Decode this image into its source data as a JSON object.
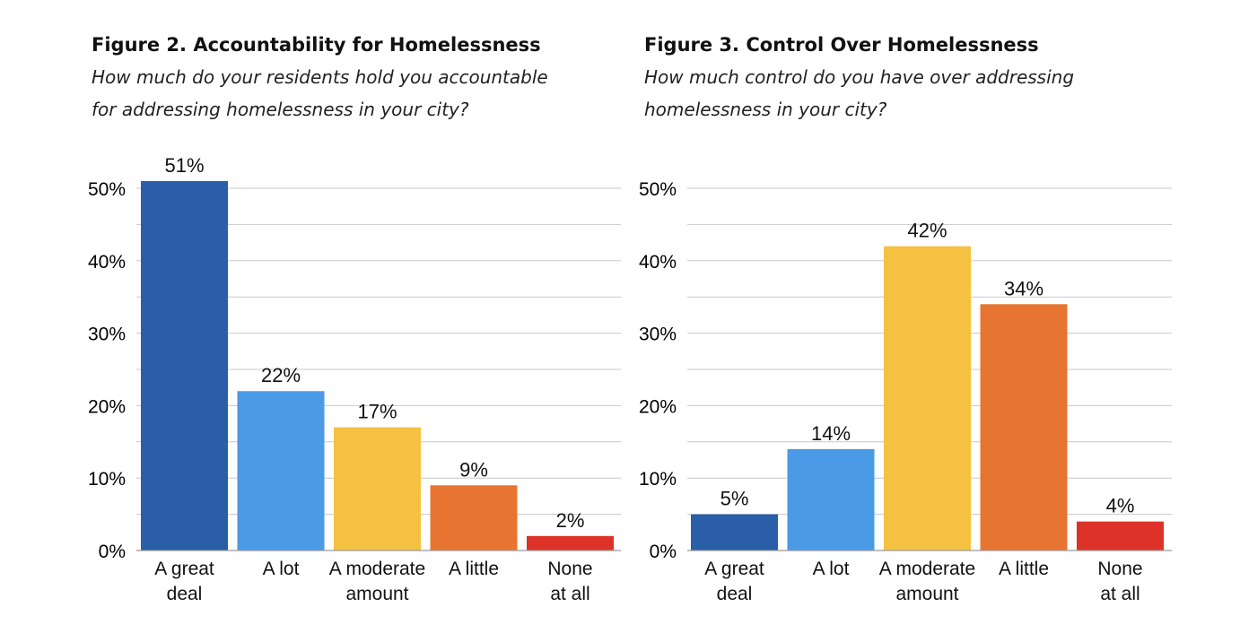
{
  "colors": {
    "dark_blue": "#2a5ea8",
    "light_blue": "#4a9ae6",
    "yellow": "#f4c142",
    "orange": "#e87431",
    "red": "#dc3228",
    "grid": "#c8c8c8"
  },
  "chart_data": [
    {
      "type": "bar",
      "title": "Figure 2. Accountability for Homelessness",
      "subtitle_lines": [
        "How much do your residents hold you accountable",
        "for addressing homelessness in your city?"
      ],
      "categories": [
        [
          "A great",
          "deal"
        ],
        [
          "A lot"
        ],
        [
          "A moderate",
          "amount"
        ],
        [
          "A little"
        ],
        [
          "None",
          "at all"
        ]
      ],
      "values": [
        51,
        22,
        17,
        9,
        2
      ],
      "value_labels": [
        "51%",
        "22%",
        "17%",
        "9%",
        "2%"
      ],
      "ylim": [
        0,
        50
      ],
      "yticks": [
        0,
        10,
        20,
        30,
        40,
        50
      ],
      "ytick_labels": [
        "0%",
        "10%",
        "20%",
        "30%",
        "40%",
        "50%"
      ],
      "grid": true,
      "legend": "none"
    },
    {
      "type": "bar",
      "title": "Figure 3. Control Over Homelessness",
      "subtitle_lines": [
        "How much control do you have over addressing",
        "homelessness in your city?"
      ],
      "categories": [
        [
          "A great",
          "deal"
        ],
        [
          "A lot"
        ],
        [
          "A moderate",
          "amount"
        ],
        [
          "A little"
        ],
        [
          "None",
          "at all"
        ]
      ],
      "values": [
        5,
        14,
        42,
        34,
        4
      ],
      "value_labels": [
        "5%",
        "14%",
        "42%",
        "34%",
        "4%"
      ],
      "ylim": [
        0,
        50
      ],
      "yticks": [
        0,
        10,
        20,
        30,
        40,
        50
      ],
      "ytick_labels": [
        "0%",
        "10%",
        "20%",
        "30%",
        "40%",
        "50%"
      ],
      "grid": true,
      "legend": "none"
    }
  ]
}
